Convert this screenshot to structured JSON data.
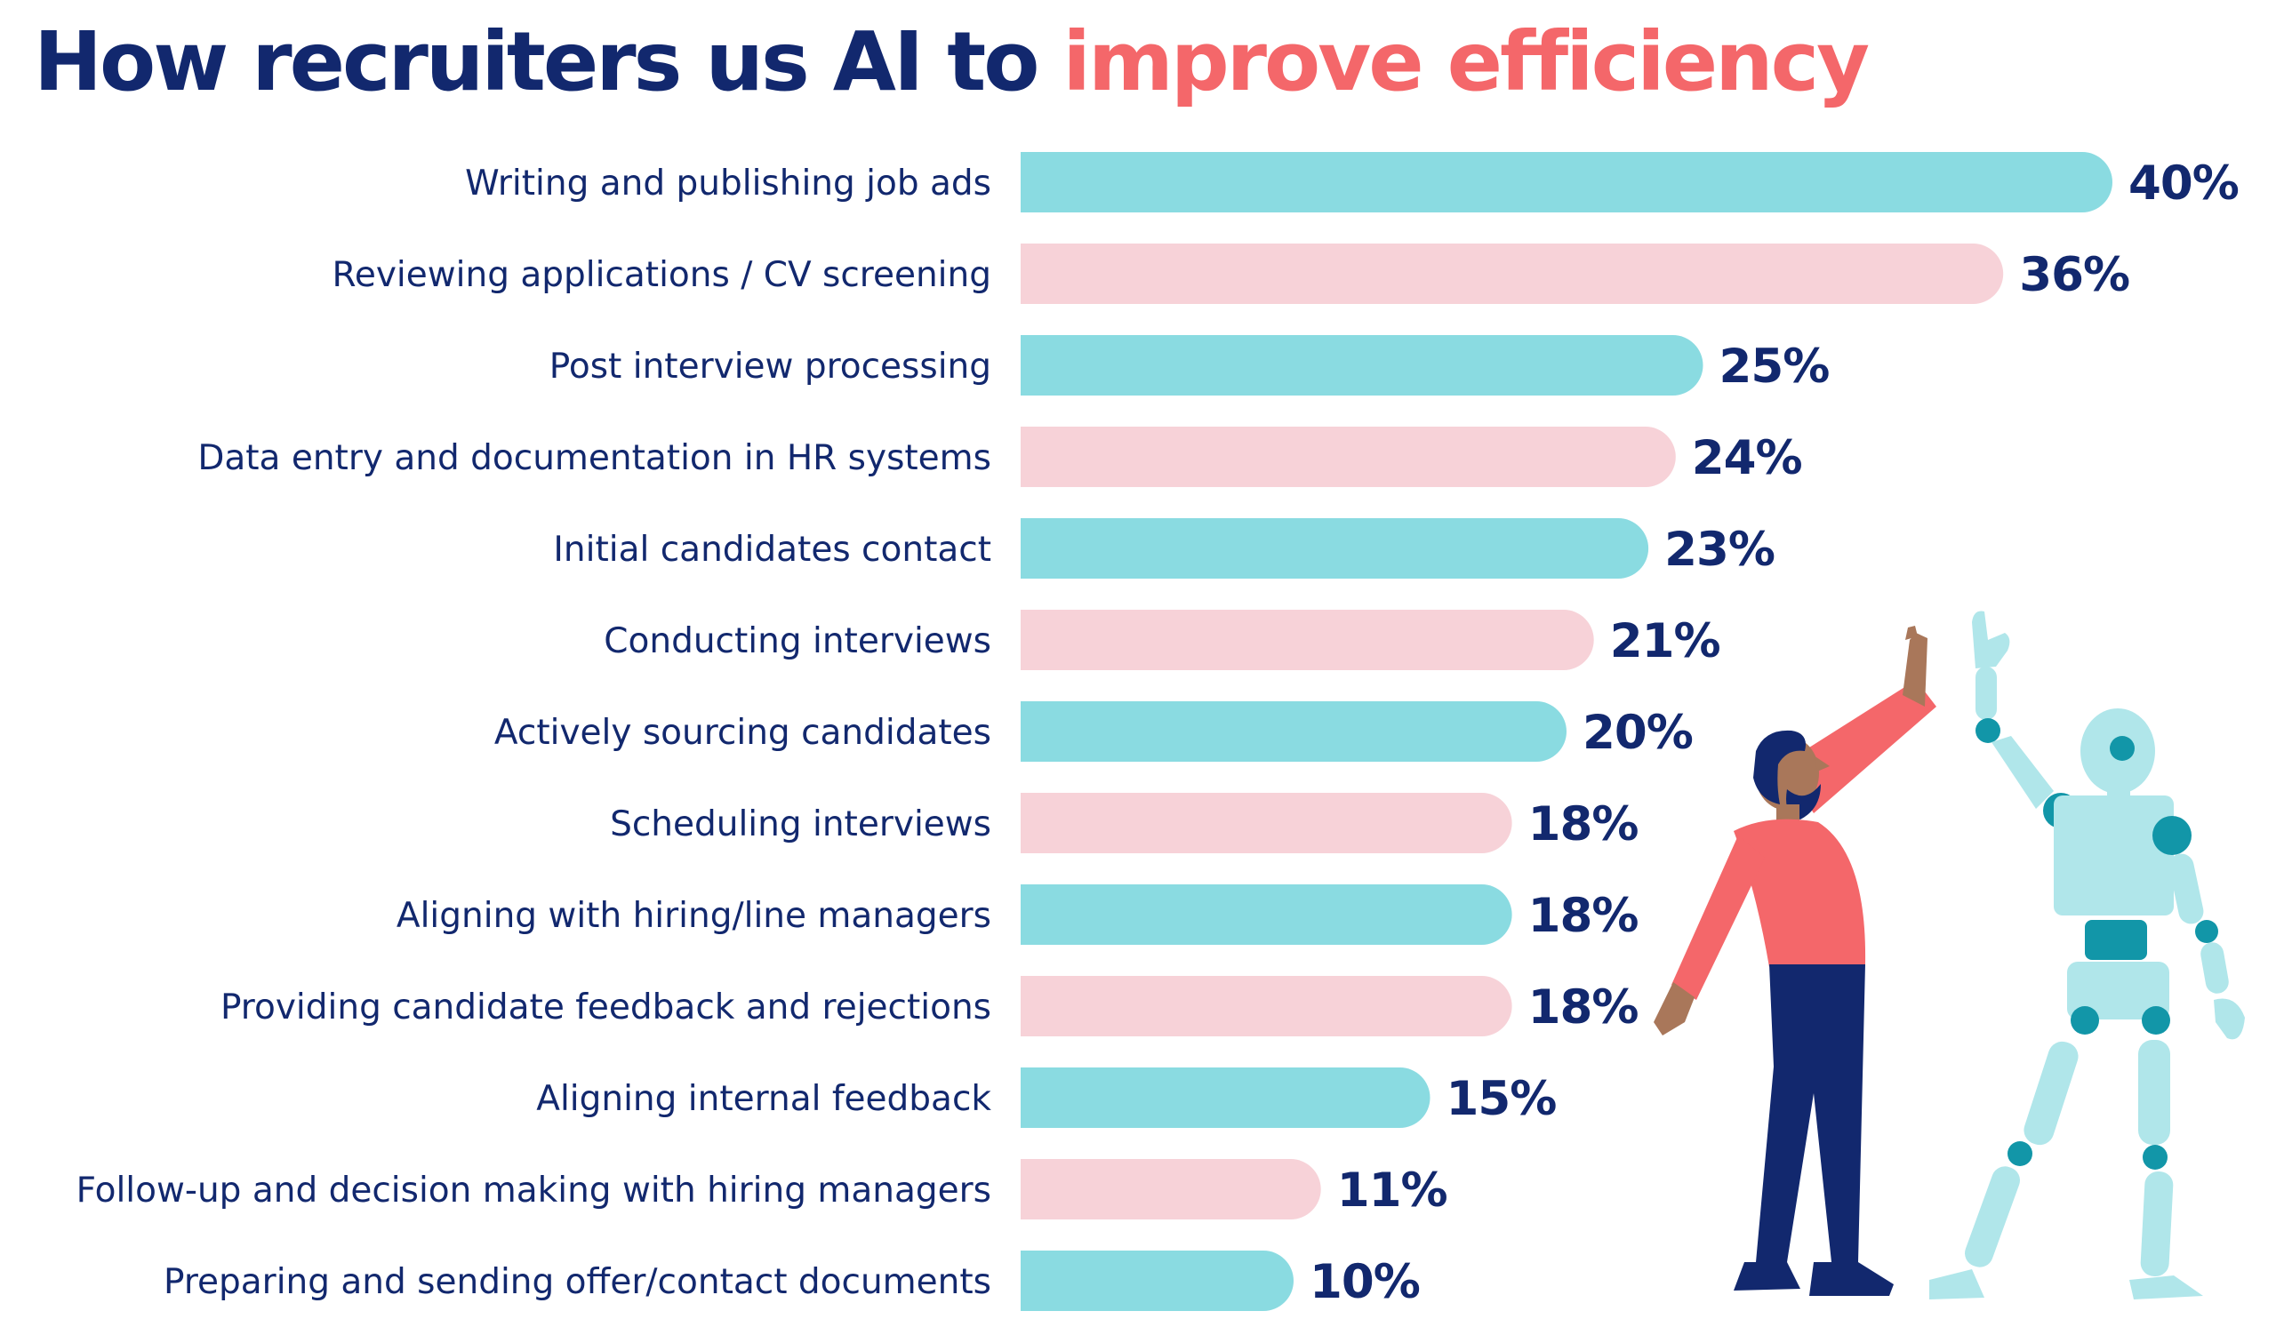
{
  "title": {
    "part1": "How recruiters us AI to ",
    "part2": "improve efficiency"
  },
  "colors": {
    "navy": "#12286e",
    "coral": "#f4676a",
    "teal_bar": "#8adbe1",
    "pink_bar": "#f7d2d8",
    "shirt": "#f4676a",
    "pants": "#12286e",
    "skin": "#a9775a",
    "robot_light": "#b0e6ea",
    "robot_dark": "#1296a8"
  },
  "chart_data": {
    "type": "bar",
    "orientation": "horizontal",
    "title": "How recruiters us AI to improve efficiency",
    "unit": "%",
    "categories": [
      "Writing and publishing job ads",
      "Reviewing applications / CV screening",
      "Post interview processing",
      "Data entry and documentation in HR systems",
      "Initial candidates contact",
      "Conducting interviews",
      "Actively sourcing candidates",
      "Scheduling interviews",
      "Aligning with hiring/line managers",
      "Providing candidate feedback and rejections",
      "Aligning internal feedback",
      "Follow-up and decision making with hiring managers",
      "Preparing and sending offer/contact documents"
    ],
    "values": [
      40,
      36,
      25,
      24,
      23,
      21,
      20,
      18,
      18,
      18,
      15,
      11,
      10
    ],
    "value_labels": [
      "40%",
      "36%",
      "25%",
      "24%",
      "23%",
      "21%",
      "20%",
      "18%",
      "18%",
      "18%",
      "15%",
      "11%",
      "10%"
    ],
    "bar_color_pattern": [
      "teal",
      "pink"
    ],
    "xlim": [
      0,
      40
    ],
    "grid": false,
    "legend": "none"
  },
  "illustration": {
    "icons": [
      "person-high-five-icon",
      "robot-icon"
    ]
  }
}
